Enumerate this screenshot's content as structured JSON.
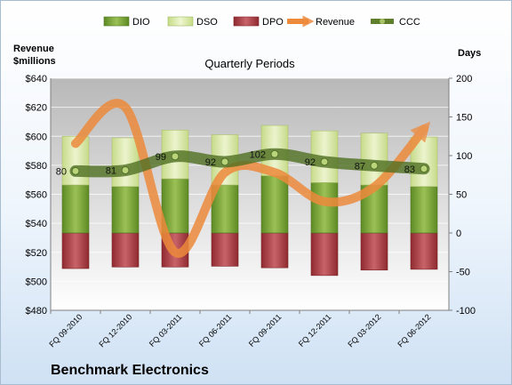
{
  "chart_data": {
    "type": "bar",
    "subtitle": "Quarterly Periods",
    "company": "Benchmark Electronics",
    "left_axis": {
      "label": [
        "Revenue",
        "$millions"
      ],
      "range": [
        480,
        640
      ],
      "ticks": [
        "$480",
        "$500",
        "$520",
        "$540",
        "$560",
        "$580",
        "$600",
        "$620",
        "$640"
      ]
    },
    "right_axis": {
      "label": "Days",
      "range": [
        -100,
        200
      ],
      "ticks": [
        "-100",
        "-50",
        "0",
        "50",
        "100",
        "150",
        "200"
      ]
    },
    "categories": [
      "FQ 09-2010",
      "FQ 12-2010",
      "FQ 03-2011",
      "FQ 06-2011",
      "FQ 09-2011",
      "FQ 12-2011",
      "FQ 03-2012",
      "FQ 06-2012"
    ],
    "legend": [
      "DIO",
      "DSO",
      "DPO",
      "Revenue",
      "CCC"
    ],
    "legend_position": "top",
    "grid": true,
    "colors": {
      "DIO": "#7ea33a",
      "DSO": "#d9e9a6",
      "DPO": "#b64a4e",
      "Revenue": "#ed8a3c",
      "CCC": "#5f7f2d"
    },
    "series": [
      {
        "name": "DIO",
        "axis": "right",
        "values": [
          62,
          60,
          70,
          62,
          74,
          65,
          62,
          60
        ]
      },
      {
        "name": "DSO",
        "axis": "right",
        "values": [
          63,
          63,
          63,
          65,
          65,
          67,
          67,
          64
        ]
      },
      {
        "name": "DPO",
        "axis": "right",
        "values": [
          -46,
          -44,
          -44,
          -43,
          -45,
          -55,
          -48,
          -47
        ]
      },
      {
        "name": "Revenue",
        "axis": "left",
        "values": [
          595,
          620,
          520,
          575,
          575,
          555,
          565,
          605
        ]
      },
      {
        "name": "CCC",
        "axis": "right",
        "values": [
          80,
          81,
          99,
          92,
          102,
          92,
          87,
          83
        ],
        "labels": [
          "80",
          "81",
          "99",
          "92",
          "102",
          "92",
          "87",
          "83"
        ]
      }
    ]
  }
}
